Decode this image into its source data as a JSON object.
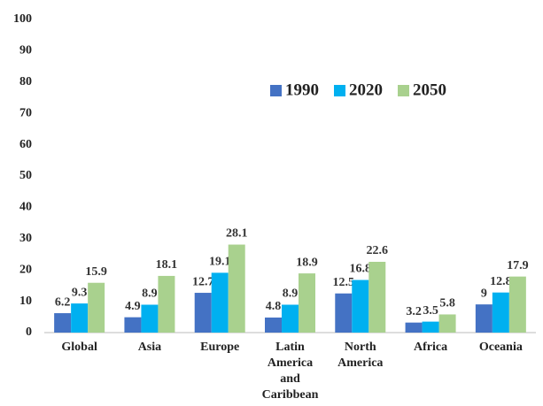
{
  "chart_data": {
    "type": "bar",
    "categories": [
      "Global",
      "Asia",
      "Europe",
      "Latin America and Caribbean",
      "North America",
      "Africa",
      "Oceania"
    ],
    "series": [
      {
        "name": "1990",
        "color": "#4472c4",
        "values": [
          6.2,
          4.9,
          12.7,
          4.8,
          12.5,
          3.2,
          9
        ]
      },
      {
        "name": "2020",
        "color": "#00b0f0",
        "values": [
          9.3,
          8.9,
          19.1,
          8.9,
          16.8,
          3.5,
          12.8
        ]
      },
      {
        "name": "2050",
        "color": "#a9d18e",
        "values": [
          15.9,
          18.1,
          28.1,
          18.9,
          22.6,
          5.8,
          17.9
        ]
      }
    ],
    "ylim": [
      0,
      100
    ],
    "yticks": [
      0,
      10,
      20,
      30,
      40,
      50,
      60,
      70,
      80,
      90,
      100
    ],
    "grid": false,
    "legend": "top-right"
  }
}
